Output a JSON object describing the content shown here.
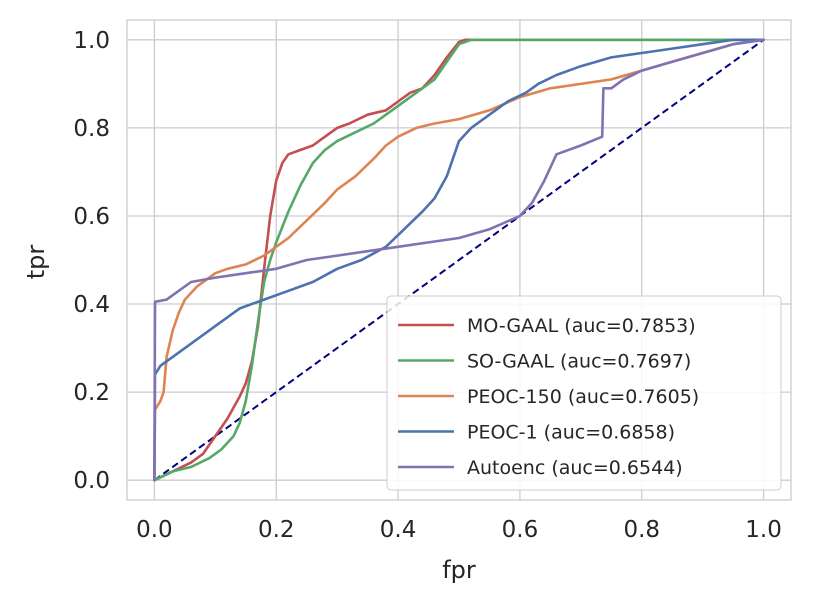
{
  "chart_data": {
    "type": "line",
    "title": "",
    "xlabel": "fpr",
    "ylabel": "tpr",
    "xlim": [
      -0.045,
      1.045
    ],
    "ylim": [
      -0.045,
      1.045
    ],
    "xticks": [
      0.0,
      0.2,
      0.4,
      0.6,
      0.8,
      1.0
    ],
    "yticks": [
      0.0,
      0.2,
      0.4,
      0.6,
      0.8,
      1.0
    ],
    "xtick_labels": [
      "0.0",
      "0.2",
      "0.4",
      "0.6",
      "0.8",
      "1.0"
    ],
    "ytick_labels": [
      "0.0",
      "0.2",
      "0.4",
      "0.6",
      "0.8",
      "1.0"
    ],
    "grid": true,
    "legend_position": "lower-right",
    "series": [
      {
        "name": "MO-GAAL",
        "legend_label": "MO-GAAL (auc=0.7853)",
        "color": "#c44e52",
        "x": [
          0,
          0.03,
          0.06,
          0.08,
          0.1,
          0.12,
          0.14,
          0.15,
          0.16,
          0.17,
          0.18,
          0.19,
          0.2,
          0.21,
          0.22,
          0.24,
          0.26,
          0.28,
          0.3,
          0.32,
          0.35,
          0.38,
          0.4,
          0.42,
          0.44,
          0.46,
          0.48,
          0.5,
          0.51,
          0.55,
          0.7,
          0.85,
          1.0
        ],
        "y": [
          0,
          0.02,
          0.04,
          0.06,
          0.1,
          0.14,
          0.19,
          0.22,
          0.27,
          0.35,
          0.48,
          0.6,
          0.68,
          0.72,
          0.74,
          0.75,
          0.76,
          0.78,
          0.8,
          0.81,
          0.83,
          0.84,
          0.86,
          0.88,
          0.89,
          0.92,
          0.96,
          0.995,
          1.0,
          1.0,
          1.0,
          1.0,
          1.0
        ]
      },
      {
        "name": "SO-GAAL",
        "legend_label": "SO-GAAL (auc=0.7697)",
        "color": "#55a868",
        "x": [
          0,
          0.03,
          0.06,
          0.09,
          0.11,
          0.13,
          0.14,
          0.15,
          0.16,
          0.17,
          0.18,
          0.19,
          0.2,
          0.22,
          0.24,
          0.26,
          0.28,
          0.3,
          0.33,
          0.36,
          0.38,
          0.4,
          0.42,
          0.44,
          0.46,
          0.48,
          0.5,
          0.52,
          0.6,
          0.8,
          1.0
        ],
        "y": [
          0,
          0.02,
          0.03,
          0.05,
          0.07,
          0.1,
          0.13,
          0.18,
          0.26,
          0.36,
          0.45,
          0.5,
          0.54,
          0.61,
          0.67,
          0.72,
          0.75,
          0.77,
          0.79,
          0.81,
          0.83,
          0.85,
          0.87,
          0.89,
          0.91,
          0.95,
          0.99,
          1.0,
          1.0,
          1.0,
          1.0
        ]
      },
      {
        "name": "PEOC-150",
        "legend_label": "PEOC-150 (auc=0.7605)",
        "color": "#dd8452",
        "x": [
          0,
          0.001,
          0.01,
          0.015,
          0.02,
          0.03,
          0.04,
          0.05,
          0.07,
          0.1,
          0.12,
          0.15,
          0.18,
          0.2,
          0.22,
          0.25,
          0.28,
          0.3,
          0.33,
          0.36,
          0.38,
          0.4,
          0.43,
          0.46,
          0.5,
          0.55,
          0.6,
          0.65,
          0.7,
          0.75,
          0.8,
          0.85,
          0.9,
          0.95,
          1.0
        ],
        "y": [
          0,
          0.16,
          0.18,
          0.2,
          0.28,
          0.34,
          0.38,
          0.41,
          0.44,
          0.47,
          0.48,
          0.49,
          0.51,
          0.53,
          0.55,
          0.59,
          0.63,
          0.66,
          0.69,
          0.73,
          0.76,
          0.78,
          0.8,
          0.81,
          0.82,
          0.84,
          0.87,
          0.89,
          0.9,
          0.91,
          0.93,
          0.95,
          0.97,
          0.99,
          1.0
        ]
      },
      {
        "name": "PEOC-1",
        "legend_label": "PEOC-1 (auc=0.6858)",
        "color": "#4c72b0",
        "x": [
          0,
          0.001,
          0.01,
          0.03,
          0.06,
          0.1,
          0.14,
          0.18,
          0.22,
          0.26,
          0.3,
          0.34,
          0.38,
          0.41,
          0.44,
          0.46,
          0.48,
          0.5,
          0.52,
          0.55,
          0.58,
          0.61,
          0.63,
          0.66,
          0.7,
          0.75,
          0.8,
          0.85,
          0.9,
          0.95,
          1.0
        ],
        "y": [
          0,
          0.24,
          0.26,
          0.28,
          0.31,
          0.35,
          0.39,
          0.41,
          0.43,
          0.45,
          0.48,
          0.5,
          0.53,
          0.57,
          0.61,
          0.64,
          0.69,
          0.77,
          0.8,
          0.83,
          0.86,
          0.88,
          0.9,
          0.92,
          0.94,
          0.96,
          0.97,
          0.98,
          0.99,
          1.0,
          1.0
        ]
      },
      {
        "name": "Autoenc",
        "legend_label": "Autoenc (auc=0.6544)",
        "color": "#8172b2",
        "x": [
          0,
          0.001,
          0.02,
          0.04,
          0.06,
          0.1,
          0.15,
          0.2,
          0.25,
          0.3,
          0.35,
          0.4,
          0.45,
          0.5,
          0.55,
          0.6,
          0.62,
          0.64,
          0.66,
          0.7,
          0.735,
          0.737,
          0.75,
          0.77,
          0.8,
          0.85,
          0.9,
          0.95,
          1.0
        ],
        "y": [
          0,
          0.405,
          0.41,
          0.43,
          0.45,
          0.46,
          0.47,
          0.48,
          0.5,
          0.51,
          0.52,
          0.53,
          0.54,
          0.55,
          0.57,
          0.6,
          0.63,
          0.68,
          0.74,
          0.76,
          0.78,
          0.89,
          0.89,
          0.91,
          0.93,
          0.95,
          0.97,
          0.99,
          1.0
        ]
      }
    ],
    "reference_line": {
      "name": "chance",
      "color": "#000080",
      "style": "dashed",
      "x": [
        0,
        1
      ],
      "y": [
        0,
        1
      ]
    }
  }
}
